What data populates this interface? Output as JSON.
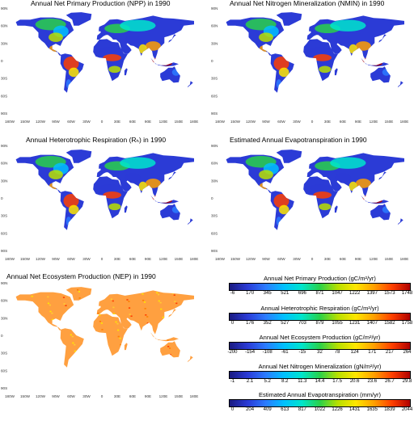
{
  "panels": [
    {
      "title": "Annual Net Primary Production (NPP) in 1990",
      "style": "veg"
    },
    {
      "title": "Annual Net Nitrogen Mineralization (NMIN) in 1990",
      "style": "veg"
    },
    {
      "title": "Annual Heterotrophic Respiration (Rₕ) in 1990",
      "style": "veg"
    },
    {
      "title": "Estimated Annual Evapotranspiration in 1990",
      "style": "veg"
    },
    {
      "title": "Annual Net Ecosystem Production (NEP) in 1990",
      "style": "nep"
    }
  ],
  "lat_labels": [
    "90N",
    "60N",
    "30N",
    "0",
    "30S",
    "60S",
    "90S"
  ],
  "lon_labels": [
    "180W",
    "150W",
    "120W",
    "90W",
    "60W",
    "30W",
    "0",
    "30E",
    "60E",
    "90E",
    "120E",
    "150E",
    "180E"
  ],
  "legends": [
    {
      "title": "Annual Net Primary Production (gC/m²/yr)",
      "ticks": [
        "-6",
        "170",
        "345",
        "521",
        "696",
        "871",
        "1047",
        "1222",
        "1397",
        "1573",
        "1748"
      ]
    },
    {
      "title": "Annual Heterotrophic Respiration (gC/m²/yr)",
      "ticks": [
        "0",
        "176",
        "352",
        "527",
        "703",
        "879",
        "1055",
        "1231",
        "1407",
        "1582",
        "1758"
      ]
    },
    {
      "title": "Annual Net Ecosystem Production (gC/m²/yr)",
      "ticks": [
        "-200",
        "-154",
        "-108",
        "-61",
        "-15",
        "32",
        "78",
        "124",
        "171",
        "217",
        "264"
      ]
    },
    {
      "title": "Annual Net Nitrogen Mineralization (gN/m²/yr)",
      "ticks": [
        "-1",
        "2.1",
        "5.2",
        "8.2",
        "11.3",
        "14.4",
        "17.5",
        "20.6",
        "23.6",
        "26.7",
        "29.8"
      ]
    },
    {
      "title": "Estimated Annual Evapotranspiration (mm/yr)",
      "ticks": [
        "0",
        "204",
        "409",
        "613",
        "817",
        "1022",
        "1226",
        "1431",
        "1635",
        "1839",
        "2044"
      ]
    }
  ],
  "colors": {
    "ocean": "#ffffff",
    "ice": "#ffffff",
    "veg_low": "#2b3bd6",
    "veg_mid": "#29d14a",
    "veg_high": "#ff4000",
    "nep_base": "#ffa040"
  }
}
